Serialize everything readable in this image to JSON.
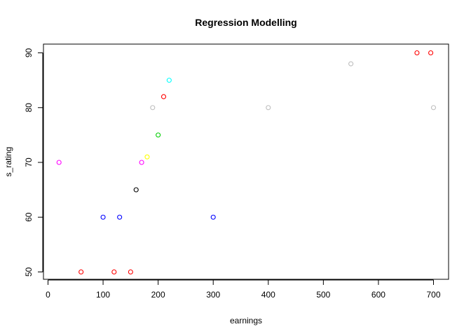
{
  "chart_data": {
    "type": "scatter",
    "title": "Regression Modelling",
    "xlabel": "earnings",
    "ylabel": "s_rating",
    "xlim": [
      0,
      700
    ],
    "ylim": [
      50,
      90
    ],
    "xticks": [
      0,
      100,
      200,
      300,
      400,
      500,
      600,
      700
    ],
    "yticks": [
      50,
      60,
      70,
      80,
      90
    ],
    "grid": false,
    "legend": "none",
    "points": [
      {
        "x": 20,
        "y": 70,
        "color": "#ff00ff"
      },
      {
        "x": 60,
        "y": 50,
        "color": "#ff0000"
      },
      {
        "x": 100,
        "y": 60,
        "color": "#0000ff"
      },
      {
        "x": 120,
        "y": 50,
        "color": "#ff0000"
      },
      {
        "x": 130,
        "y": 60,
        "color": "#0000ff"
      },
      {
        "x": 150,
        "y": 50,
        "color": "#ff0000"
      },
      {
        "x": 160,
        "y": 65,
        "color": "#000000"
      },
      {
        "x": 170,
        "y": 70,
        "color": "#ff00ff"
      },
      {
        "x": 180,
        "y": 71,
        "color": "#ffff00"
      },
      {
        "x": 190,
        "y": 80,
        "color": "#bebebe"
      },
      {
        "x": 200,
        "y": 75,
        "color": "#00cd00"
      },
      {
        "x": 210,
        "y": 82,
        "color": "#ff0000"
      },
      {
        "x": 220,
        "y": 85,
        "color": "#00ffff"
      },
      {
        "x": 300,
        "y": 60,
        "color": "#0000ff"
      },
      {
        "x": 400,
        "y": 80,
        "color": "#bebebe"
      },
      {
        "x": 550,
        "y": 88,
        "color": "#bebebe"
      },
      {
        "x": 670,
        "y": 90,
        "color": "#ff0000"
      },
      {
        "x": 695,
        "y": 90,
        "color": "#ff0000"
      },
      {
        "x": 700,
        "y": 80,
        "color": "#bebebe"
      }
    ]
  }
}
